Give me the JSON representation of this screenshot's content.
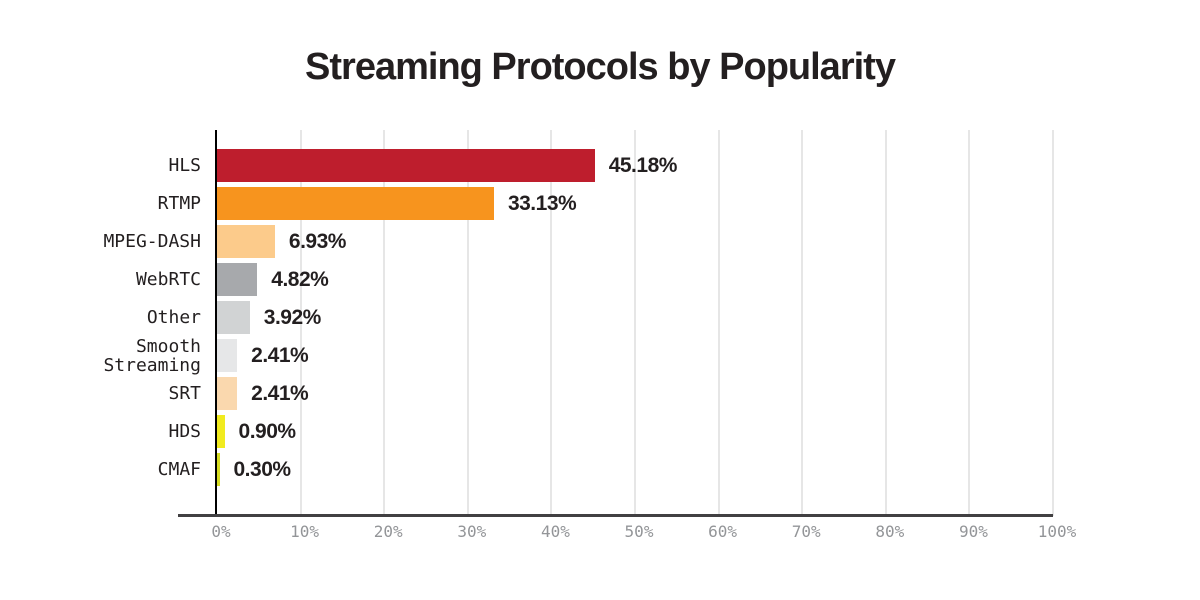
{
  "chart_data": {
    "type": "bar",
    "orientation": "horizontal",
    "title": "Streaming Protocols by Popularity",
    "categories": [
      "HLS",
      "RTMP",
      "MPEG-DASH",
      "WebRTC",
      "Other",
      "Smooth Streaming",
      "SRT",
      "HDS",
      "CMAF"
    ],
    "values": [
      45.18,
      33.13,
      6.93,
      4.82,
      3.92,
      2.41,
      2.41,
      0.9,
      0.3
    ],
    "value_labels": [
      "45.18%",
      "33.13%",
      "6.93%",
      "4.82%",
      "3.92%",
      "2.41%",
      "2.41%",
      "0.90%",
      "0.30%"
    ],
    "bar_colors": [
      "#be1e2d",
      "#f7941e",
      "#fccb8b",
      "#a7a9ac",
      "#d1d3d4",
      "#e6e7e8",
      "#fad8ae",
      "#f1eb1f",
      "#d7dd23"
    ],
    "xlabel": "",
    "ylabel": "",
    "xlim": [
      0,
      100
    ],
    "x_tick_labels": [
      "0%",
      "10%",
      "20%",
      "30%",
      "40%",
      "50%",
      "60%",
      "70%",
      "80%",
      "90%",
      "100%"
    ],
    "grid": "vertical gridlines every 10%",
    "legend": "none"
  },
  "colors": {
    "background": "#ffffff",
    "title_text": "#231f20",
    "value_label_text": "#231f20",
    "category_label_text": "#231f20",
    "tick_label_text": "#939598",
    "gridline": "#e6e6e6",
    "x_axis_line": "#414042",
    "y_axis_line": "#000000"
  }
}
